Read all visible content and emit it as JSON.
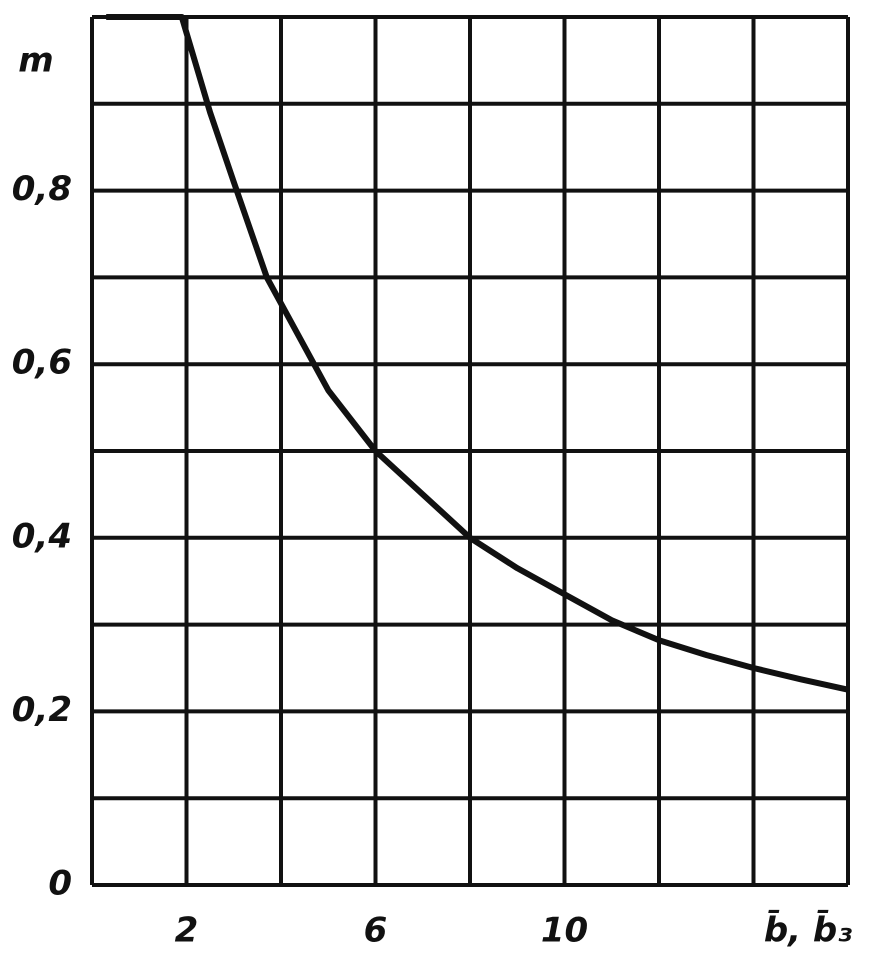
{
  "chart_data": {
    "type": "line",
    "y_label": "m",
    "x_label": "b̄, b̄₃",
    "x": [
      0.3,
      1,
      1.9,
      2.5,
      3,
      3.7,
      4.5,
      5,
      6,
      7,
      8,
      9,
      10,
      11,
      12,
      13,
      14,
      15,
      16
    ],
    "series": [
      {
        "color": "#111111",
        "values": [
          1,
          1,
          1,
          0.89,
          0.81,
          0.7,
          0.62,
          0.57,
          0.5,
          0.45,
          0.4,
          0.365,
          0.335,
          0.305,
          0.282,
          0.265,
          0.25,
          0.237,
          0.225
        ]
      }
    ],
    "xlim": [
      0,
      16
    ],
    "ylim": [
      0,
      1
    ],
    "xticks": [
      2,
      6,
      10
    ],
    "yticks": [
      0,
      {
        "value": 0.2,
        "label": "0,2"
      },
      {
        "value": 0.4,
        "label": "0,4"
      },
      {
        "value": 0.6,
        "label": "0,6"
      },
      {
        "value": 0.8,
        "label": "0,8"
      }
    ],
    "xgrid": [
      0,
      2,
      4,
      6,
      8,
      10,
      12,
      14,
      16
    ],
    "ygrid": [
      0,
      0.1,
      0.2,
      0.3,
      0.4,
      0.5,
      0.6,
      0.7,
      0.8,
      0.9,
      1
    ],
    "grid": true
  }
}
